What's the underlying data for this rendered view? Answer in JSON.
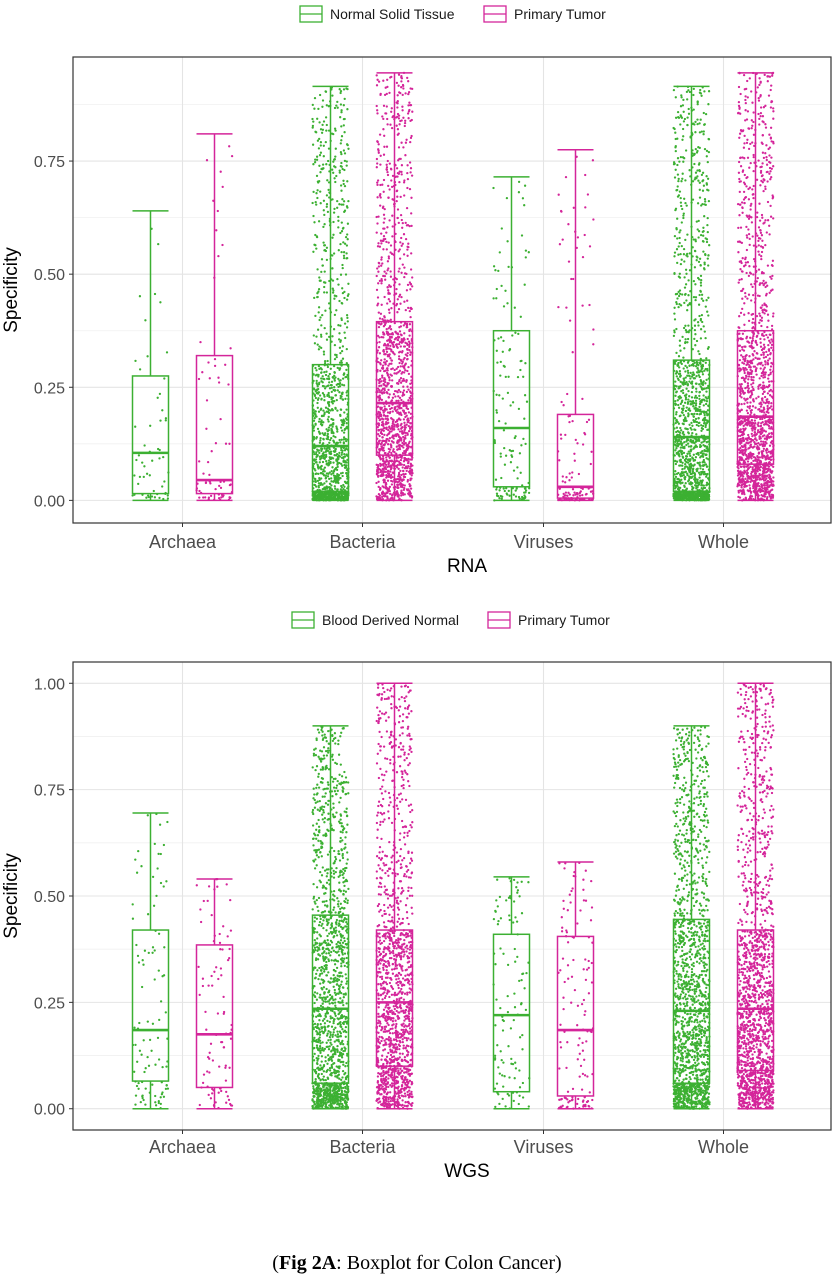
{
  "caption": {
    "open": "(",
    "bold": "Fig 2A",
    "rest": ": Boxplot for Colon Cancer)"
  },
  "colors": {
    "normal": "#3cb032",
    "tumor": "#d4259a"
  },
  "chart_data": [
    {
      "type": "boxplot",
      "xlabel": "RNA",
      "ylabel": "Specificity",
      "ylim": [
        -0.05,
        0.98
      ],
      "yticks": [
        0.0,
        0.25,
        0.5,
        0.75
      ],
      "ytick_labels": [
        "0.00",
        "0.25",
        "0.50",
        "0.75"
      ],
      "grid": true,
      "legend_position": "top",
      "categories": [
        "Archaea",
        "Bacteria",
        "Viruses",
        "Whole"
      ],
      "series": [
        {
          "name": "Normal Solid Tissue",
          "color": "#3cb032",
          "boxes": [
            {
              "min": 0.0,
              "q1": 0.015,
              "median": 0.105,
              "q3": 0.275,
              "max": 0.64,
              "n_points": 55
            },
            {
              "min": 0.0,
              "q1": 0.02,
              "median": 0.12,
              "q3": 0.3,
              "max": 0.915,
              "n_points": 1300
            },
            {
              "min": 0.0,
              "q1": 0.03,
              "median": 0.16,
              "q3": 0.375,
              "max": 0.715,
              "n_points": 140
            },
            {
              "min": 0.0,
              "q1": 0.02,
              "median": 0.14,
              "q3": 0.31,
              "max": 0.915,
              "n_points": 1500
            }
          ]
        },
        {
          "name": "Primary Tumor",
          "color": "#d4259a",
          "boxes": [
            {
              "min": 0.0,
              "q1": 0.015,
              "median": 0.045,
              "q3": 0.32,
              "max": 0.81,
              "n_points": 70
            },
            {
              "min": 0.0,
              "q1": 0.1,
              "median": 0.215,
              "q3": 0.395,
              "max": 0.945,
              "n_points": 1400
            },
            {
              "min": 0.0,
              "q1": 0.005,
              "median": 0.03,
              "q3": 0.19,
              "max": 0.775,
              "n_points": 130
            },
            {
              "min": 0.0,
              "q1": 0.08,
              "median": 0.185,
              "q3": 0.375,
              "max": 0.945,
              "n_points": 1500
            }
          ]
        }
      ]
    },
    {
      "type": "boxplot",
      "xlabel": "WGS",
      "ylabel": "Specificity",
      "ylim": [
        -0.05,
        1.05
      ],
      "yticks": [
        0.0,
        0.25,
        0.5,
        0.75,
        1.0
      ],
      "ytick_labels": [
        "0.00",
        "0.25",
        "0.50",
        "0.75",
        "1.00"
      ],
      "grid": true,
      "legend_position": "top",
      "categories": [
        "Archaea",
        "Bacteria",
        "Viruses",
        "Whole"
      ],
      "series": [
        {
          "name": "Blood Derived Normal",
          "color": "#3cb032",
          "boxes": [
            {
              "min": 0.0,
              "q1": 0.065,
              "median": 0.185,
              "q3": 0.42,
              "max": 0.695,
              "n_points": 100
            },
            {
              "min": 0.0,
              "q1": 0.06,
              "median": 0.235,
              "q3": 0.455,
              "max": 0.9,
              "n_points": 1500
            },
            {
              "min": 0.0,
              "q1": 0.04,
              "median": 0.22,
              "q3": 0.41,
              "max": 0.545,
              "n_points": 110
            },
            {
              "min": 0.0,
              "q1": 0.06,
              "median": 0.23,
              "q3": 0.445,
              "max": 0.9,
              "n_points": 1600
            }
          ]
        },
        {
          "name": "Primary Tumor",
          "color": "#d4259a",
          "boxes": [
            {
              "min": 0.0,
              "q1": 0.05,
              "median": 0.175,
              "q3": 0.385,
              "max": 0.54,
              "n_points": 90
            },
            {
              "min": 0.0,
              "q1": 0.1,
              "median": 0.25,
              "q3": 0.42,
              "max": 1.0,
              "n_points": 1400
            },
            {
              "min": 0.0,
              "q1": 0.03,
              "median": 0.185,
              "q3": 0.405,
              "max": 0.58,
              "n_points": 130
            },
            {
              "min": 0.0,
              "q1": 0.09,
              "median": 0.235,
              "q3": 0.42,
              "max": 1.0,
              "n_points": 1600
            }
          ]
        }
      ]
    }
  ]
}
